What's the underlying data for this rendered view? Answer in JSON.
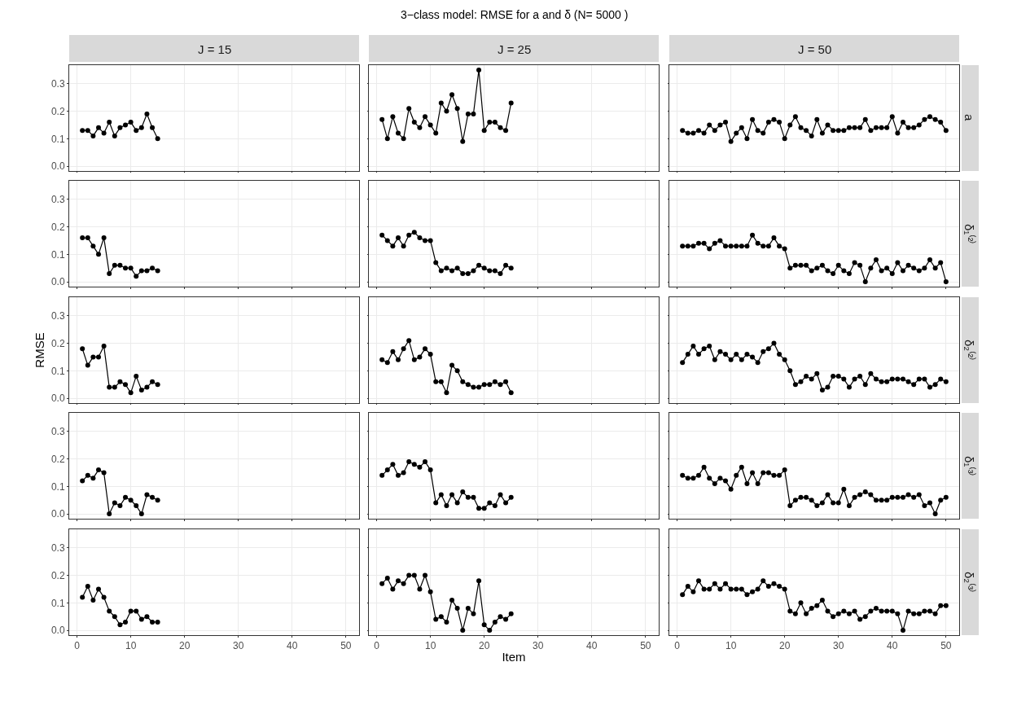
{
  "chart_data": [
    {
      "type": "line",
      "title": "J = 15",
      "annotations": [
        "3−class model: RMSE for a and δ (N= 5000 )"
      ],
      "x": [
        1,
        2,
        3,
        4,
        5,
        6,
        7,
        8,
        9,
        10,
        11,
        12,
        13,
        14,
        15
      ],
      "values": [
        0.13,
        0.13,
        0.11,
        0.14,
        0.12,
        0.16,
        0.11,
        0.14,
        0.15,
        0.16,
        0.13,
        0.14,
        0.19,
        0.14,
        0.1
      ],
      "color": "#000000",
      "marker": "circle",
      "xlim": [
        -1.45,
        52.45
      ],
      "ylim": [
        -0.0175,
        0.3675
      ],
      "xticks": [
        0,
        10,
        20,
        30,
        40,
        50
      ],
      "yticks": [
        {
          "value": 0,
          "label": "0.0"
        },
        {
          "value": 0.1,
          "label": "0.1"
        },
        {
          "value": 0.2,
          "label": "0.2"
        },
        {
          "value": 0.3,
          "label": "0.3"
        }
      ],
      "grid": true,
      "tick_labels": "y"
    },
    {
      "type": "line",
      "title": "J = 25",
      "x": [
        1,
        2,
        3,
        4,
        5,
        6,
        7,
        8,
        9,
        10,
        11,
        12,
        13,
        14,
        15,
        16,
        17,
        18,
        19,
        20,
        21,
        22,
        23,
        24,
        25
      ],
      "values": [
        0.17,
        0.1,
        0.18,
        0.12,
        0.1,
        0.21,
        0.16,
        0.14,
        0.18,
        0.15,
        0.12,
        0.23,
        0.2,
        0.26,
        0.21,
        0.09,
        0.19,
        0.19,
        0.35,
        0.13,
        0.16,
        0.16,
        0.14,
        0.13,
        0.23
      ],
      "color": "#000000",
      "marker": "circle",
      "xlim": [
        -1.45,
        52.45
      ],
      "ylim": [
        -0.0175,
        0.3675
      ],
      "xticks": [
        0,
        10,
        20,
        30,
        40,
        50
      ],
      "yticks": [
        0,
        0.1,
        0.2,
        0.3
      ],
      "grid": true,
      "tick_labels": false
    },
    {
      "type": "line",
      "title": "J = 50",
      "annotations": [
        "a"
      ],
      "x": [
        1,
        2,
        3,
        4,
        5,
        6,
        7,
        8,
        9,
        10,
        11,
        12,
        13,
        14,
        15,
        16,
        17,
        18,
        19,
        20,
        21,
        22,
        23,
        24,
        25,
        26,
        27,
        28,
        29,
        30,
        31,
        32,
        33,
        34,
        35,
        36,
        37,
        38,
        39,
        40,
        41,
        42,
        43,
        44,
        45,
        46,
        47,
        48,
        49,
        50
      ],
      "values": [
        0.13,
        0.12,
        0.12,
        0.13,
        0.12,
        0.15,
        0.13,
        0.15,
        0.16,
        0.09,
        0.12,
        0.14,
        0.1,
        0.17,
        0.13,
        0.12,
        0.16,
        0.17,
        0.16,
        0.1,
        0.15,
        0.18,
        0.14,
        0.13,
        0.11,
        0.17,
        0.12,
        0.15,
        0.13,
        0.13,
        0.13,
        0.14,
        0.14,
        0.14,
        0.17,
        0.13,
        0.14,
        0.14,
        0.14,
        0.18,
        0.12,
        0.16,
        0.14,
        0.14,
        0.15,
        0.17,
        0.18,
        0.17,
        0.16,
        0.13
      ],
      "color": "#000000",
      "marker": "circle",
      "xlim": [
        -1.45,
        52.45
      ],
      "ylim": [
        -0.0175,
        0.3675
      ],
      "xticks": [
        0,
        10,
        20,
        30,
        40,
        50
      ],
      "yticks": [
        0,
        0.1,
        0.2,
        0.3
      ],
      "grid": true,
      "tick_labels": false
    },
    {
      "type": "line",
      "x": [
        1,
        2,
        3,
        4,
        5,
        6,
        7,
        8,
        9,
        10,
        11,
        12,
        13,
        14,
        15
      ],
      "values": [
        0.16,
        0.16,
        0.13,
        0.1,
        0.16,
        0.03,
        0.06,
        0.06,
        0.05,
        0.05,
        0.02,
        0.04,
        0.04,
        0.05,
        0.04
      ],
      "color": "#000000",
      "marker": "circle",
      "xlim": [
        -1.45,
        52.45
      ],
      "ylim": [
        -0.0175,
        0.3675
      ],
      "xticks": [
        0,
        10,
        20,
        30,
        40,
        50
      ],
      "yticks": [
        {
          "value": 0,
          "label": "0.0"
        },
        {
          "value": 0.1,
          "label": "0.1"
        },
        {
          "value": 0.2,
          "label": "0.2"
        },
        {
          "value": 0.3,
          "label": "0.3"
        }
      ],
      "grid": true,
      "tick_labels": "y"
    },
    {
      "type": "line",
      "x": [
        1,
        2,
        3,
        4,
        5,
        6,
        7,
        8,
        9,
        10,
        11,
        12,
        13,
        14,
        15,
        16,
        17,
        18,
        19,
        20,
        21,
        22,
        23,
        24,
        25
      ],
      "values": [
        0.17,
        0.15,
        0.13,
        0.16,
        0.13,
        0.17,
        0.18,
        0.16,
        0.15,
        0.15,
        0.07,
        0.04,
        0.05,
        0.04,
        0.05,
        0.03,
        0.03,
        0.04,
        0.06,
        0.05,
        0.04,
        0.04,
        0.03,
        0.06,
        0.05
      ],
      "color": "#000000",
      "marker": "circle",
      "xlim": [
        -1.45,
        52.45
      ],
      "ylim": [
        -0.0175,
        0.3675
      ],
      "xticks": [
        0,
        10,
        20,
        30,
        40,
        50
      ],
      "yticks": [
        0,
        0.1,
        0.2,
        0.3
      ],
      "grid": true,
      "tick_labels": false
    },
    {
      "type": "line",
      "annotations": [
        "δ₁⁽²⁾"
      ],
      "x": [
        1,
        2,
        3,
        4,
        5,
        6,
        7,
        8,
        9,
        10,
        11,
        12,
        13,
        14,
        15,
        16,
        17,
        18,
        19,
        20,
        21,
        22,
        23,
        24,
        25,
        26,
        27,
        28,
        29,
        30,
        31,
        32,
        33,
        34,
        35,
        36,
        37,
        38,
        39,
        40,
        41,
        42,
        43,
        44,
        45,
        46,
        47,
        48,
        49,
        50
      ],
      "values": [
        0.13,
        0.13,
        0.13,
        0.14,
        0.14,
        0.12,
        0.14,
        0.15,
        0.13,
        0.13,
        0.13,
        0.13,
        0.13,
        0.17,
        0.14,
        0.13,
        0.13,
        0.16,
        0.13,
        0.12,
        0.05,
        0.06,
        0.06,
        0.06,
        0.04,
        0.05,
        0.06,
        0.04,
        0.03,
        0.06,
        0.04,
        0.03,
        0.07,
        0.06,
        0.0,
        0.05,
        0.08,
        0.04,
        0.05,
        0.03,
        0.07,
        0.04,
        0.06,
        0.05,
        0.04,
        0.05,
        0.08,
        0.05,
        0.07,
        0.0
      ],
      "color": "#000000",
      "marker": "circle",
      "xlim": [
        -1.45,
        52.45
      ],
      "ylim": [
        -0.0175,
        0.3675
      ],
      "xticks": [
        0,
        10,
        20,
        30,
        40,
        50
      ],
      "yticks": [
        0,
        0.1,
        0.2,
        0.3
      ],
      "grid": true,
      "tick_labels": false
    },
    {
      "type": "line",
      "ylabel": "RMSE",
      "x": [
        1,
        2,
        3,
        4,
        5,
        6,
        7,
        8,
        9,
        10,
        11,
        12,
        13,
        14,
        15
      ],
      "values": [
        0.18,
        0.12,
        0.15,
        0.15,
        0.19,
        0.04,
        0.04,
        0.06,
        0.05,
        0.02,
        0.08,
        0.03,
        0.04,
        0.06,
        0.05
      ],
      "color": "#000000",
      "marker": "circle",
      "xlim": [
        -1.45,
        52.45
      ],
      "ylim": [
        -0.0175,
        0.3675
      ],
      "xticks": [
        0,
        10,
        20,
        30,
        40,
        50
      ],
      "yticks": [
        {
          "value": 0,
          "label": "0.0"
        },
        {
          "value": 0.1,
          "label": "0.1"
        },
        {
          "value": 0.2,
          "label": "0.2"
        },
        {
          "value": 0.3,
          "label": "0.3"
        }
      ],
      "grid": true,
      "tick_labels": "y"
    },
    {
      "type": "line",
      "x": [
        1,
        2,
        3,
        4,
        5,
        6,
        7,
        8,
        9,
        10,
        11,
        12,
        13,
        14,
        15,
        16,
        17,
        18,
        19,
        20,
        21,
        22,
        23,
        24,
        25
      ],
      "values": [
        0.14,
        0.13,
        0.17,
        0.14,
        0.18,
        0.21,
        0.14,
        0.15,
        0.18,
        0.16,
        0.06,
        0.06,
        0.02,
        0.12,
        0.1,
        0.06,
        0.05,
        0.04,
        0.04,
        0.05,
        0.05,
        0.06,
        0.05,
        0.06,
        0.02
      ],
      "color": "#000000",
      "marker": "circle",
      "xlim": [
        -1.45,
        52.45
      ],
      "ylim": [
        -0.0175,
        0.3675
      ],
      "xticks": [
        0,
        10,
        20,
        30,
        40,
        50
      ],
      "yticks": [
        0,
        0.1,
        0.2,
        0.3
      ],
      "grid": true,
      "tick_labels": false
    },
    {
      "type": "line",
      "annotations": [
        "δ₂⁽²⁾"
      ],
      "x": [
        1,
        2,
        3,
        4,
        5,
        6,
        7,
        8,
        9,
        10,
        11,
        12,
        13,
        14,
        15,
        16,
        17,
        18,
        19,
        20,
        21,
        22,
        23,
        24,
        25,
        26,
        27,
        28,
        29,
        30,
        31,
        32,
        33,
        34,
        35,
        36,
        37,
        38,
        39,
        40,
        41,
        42,
        43,
        44,
        45,
        46,
        47,
        48,
        49,
        50
      ],
      "values": [
        0.13,
        0.16,
        0.19,
        0.16,
        0.18,
        0.19,
        0.14,
        0.17,
        0.16,
        0.14,
        0.16,
        0.14,
        0.16,
        0.15,
        0.13,
        0.17,
        0.18,
        0.2,
        0.16,
        0.14,
        0.1,
        0.05,
        0.06,
        0.08,
        0.07,
        0.09,
        0.03,
        0.04,
        0.08,
        0.08,
        0.07,
        0.04,
        0.07,
        0.08,
        0.05,
        0.09,
        0.07,
        0.06,
        0.06,
        0.07,
        0.07,
        0.07,
        0.06,
        0.05,
        0.07,
        0.07,
        0.04,
        0.05,
        0.07,
        0.06
      ],
      "color": "#000000",
      "marker": "circle",
      "xlim": [
        -1.45,
        52.45
      ],
      "ylim": [
        -0.0175,
        0.3675
      ],
      "xticks": [
        0,
        10,
        20,
        30,
        40,
        50
      ],
      "yticks": [
        0,
        0.1,
        0.2,
        0.3
      ],
      "grid": true,
      "tick_labels": false
    },
    {
      "type": "line",
      "x": [
        1,
        2,
        3,
        4,
        5,
        6,
        7,
        8,
        9,
        10,
        11,
        12,
        13,
        14,
        15
      ],
      "values": [
        0.12,
        0.14,
        0.13,
        0.16,
        0.15,
        0.0,
        0.04,
        0.03,
        0.06,
        0.05,
        0.03,
        0.0,
        0.07,
        0.06,
        0.05
      ],
      "color": "#000000",
      "marker": "circle",
      "xlim": [
        -1.45,
        52.45
      ],
      "ylim": [
        -0.0175,
        0.3675
      ],
      "xticks": [
        0,
        10,
        20,
        30,
        40,
        50
      ],
      "yticks": [
        {
          "value": 0,
          "label": "0.0"
        },
        {
          "value": 0.1,
          "label": "0.1"
        },
        {
          "value": 0.2,
          "label": "0.2"
        },
        {
          "value": 0.3,
          "label": "0.3"
        }
      ],
      "grid": true,
      "tick_labels": "y"
    },
    {
      "type": "line",
      "x": [
        1,
        2,
        3,
        4,
        5,
        6,
        7,
        8,
        9,
        10,
        11,
        12,
        13,
        14,
        15,
        16,
        17,
        18,
        19,
        20,
        21,
        22,
        23,
        24,
        25
      ],
      "values": [
        0.14,
        0.16,
        0.18,
        0.14,
        0.15,
        0.19,
        0.18,
        0.17,
        0.19,
        0.16,
        0.04,
        0.07,
        0.03,
        0.07,
        0.04,
        0.08,
        0.06,
        0.06,
        0.02,
        0.02,
        0.04,
        0.03,
        0.07,
        0.04,
        0.06
      ],
      "color": "#000000",
      "marker": "circle",
      "xlim": [
        -1.45,
        52.45
      ],
      "ylim": [
        -0.0175,
        0.3675
      ],
      "xticks": [
        0,
        10,
        20,
        30,
        40,
        50
      ],
      "yticks": [
        0,
        0.1,
        0.2,
        0.3
      ],
      "grid": true,
      "tick_labels": false
    },
    {
      "type": "line",
      "annotations": [
        "δ₁⁽³⁾"
      ],
      "x": [
        1,
        2,
        3,
        4,
        5,
        6,
        7,
        8,
        9,
        10,
        11,
        12,
        13,
        14,
        15,
        16,
        17,
        18,
        19,
        20,
        21,
        22,
        23,
        24,
        25,
        26,
        27,
        28,
        29,
        30,
        31,
        32,
        33,
        34,
        35,
        36,
        37,
        38,
        39,
        40,
        41,
        42,
        43,
        44,
        45,
        46,
        47,
        48,
        49,
        50
      ],
      "values": [
        0.14,
        0.13,
        0.13,
        0.14,
        0.17,
        0.13,
        0.11,
        0.13,
        0.12,
        0.09,
        0.14,
        0.17,
        0.11,
        0.15,
        0.11,
        0.15,
        0.15,
        0.14,
        0.14,
        0.16,
        0.03,
        0.05,
        0.06,
        0.06,
        0.05,
        0.03,
        0.04,
        0.07,
        0.04,
        0.04,
        0.09,
        0.03,
        0.06,
        0.07,
        0.08,
        0.07,
        0.05,
        0.05,
        0.05,
        0.06,
        0.06,
        0.06,
        0.07,
        0.06,
        0.07,
        0.03,
        0.04,
        0.0,
        0.05,
        0.06
      ],
      "color": "#000000",
      "marker": "circle",
      "xlim": [
        -1.45,
        52.45
      ],
      "ylim": [
        -0.0175,
        0.3675
      ],
      "xticks": [
        0,
        10,
        20,
        30,
        40,
        50
      ],
      "yticks": [
        0,
        0.1,
        0.2,
        0.3
      ],
      "grid": true,
      "tick_labels": false
    },
    {
      "type": "line",
      "x": [
        1,
        2,
        3,
        4,
        5,
        6,
        7,
        8,
        9,
        10,
        11,
        12,
        13,
        14,
        15
      ],
      "values": [
        0.12,
        0.16,
        0.11,
        0.15,
        0.12,
        0.07,
        0.05,
        0.02,
        0.03,
        0.07,
        0.07,
        0.04,
        0.05,
        0.03,
        0.03
      ],
      "color": "#000000",
      "marker": "circle",
      "xlim": [
        -1.45,
        52.45
      ],
      "ylim": [
        -0.0175,
        0.3675
      ],
      "xticks": [
        0,
        10,
        20,
        30,
        40,
        50
      ],
      "yticks": [
        {
          "value": 0,
          "label": "0.0"
        },
        {
          "value": 0.1,
          "label": "0.1"
        },
        {
          "value": 0.2,
          "label": "0.2"
        },
        {
          "value": 0.3,
          "label": "0.3"
        }
      ],
      "grid": true
    },
    {
      "type": "line",
      "xlabel": "Item",
      "x": [
        1,
        2,
        3,
        4,
        5,
        6,
        7,
        8,
        9,
        10,
        11,
        12,
        13,
        14,
        15,
        16,
        17,
        18,
        19,
        20,
        21,
        22,
        23,
        24,
        25
      ],
      "values": [
        0.17,
        0.19,
        0.15,
        0.18,
        0.17,
        0.2,
        0.2,
        0.15,
        0.2,
        0.14,
        0.04,
        0.05,
        0.03,
        0.11,
        0.08,
        0.0,
        0.08,
        0.06,
        0.18,
        0.02,
        0.0,
        0.03,
        0.05,
        0.04,
        0.06
      ],
      "color": "#000000",
      "marker": "circle",
      "xlim": [
        -1.45,
        52.45
      ],
      "ylim": [
        -0.0175,
        0.3675
      ],
      "xticks": [
        0,
        10,
        20,
        30,
        40,
        50
      ],
      "yticks": [
        0,
        0.1,
        0.2,
        0.3
      ],
      "grid": true,
      "tick_labels": "x"
    },
    {
      "type": "line",
      "annotations": [
        "δ₂⁽³⁾"
      ],
      "x": [
        1,
        2,
        3,
        4,
        5,
        6,
        7,
        8,
        9,
        10,
        11,
        12,
        13,
        14,
        15,
        16,
        17,
        18,
        19,
        20,
        21,
        22,
        23,
        24,
        25,
        26,
        27,
        28,
        29,
        30,
        31,
        32,
        33,
        34,
        35,
        36,
        37,
        38,
        39,
        40,
        41,
        42,
        43,
        44,
        45,
        46,
        47,
        48,
        49,
        50
      ],
      "values": [
        0.13,
        0.16,
        0.14,
        0.18,
        0.15,
        0.15,
        0.17,
        0.15,
        0.17,
        0.15,
        0.15,
        0.15,
        0.13,
        0.14,
        0.15,
        0.18,
        0.16,
        0.17,
        0.16,
        0.15,
        0.07,
        0.06,
        0.1,
        0.06,
        0.08,
        0.09,
        0.11,
        0.07,
        0.05,
        0.06,
        0.07,
        0.06,
        0.07,
        0.04,
        0.05,
        0.07,
        0.08,
        0.07,
        0.07,
        0.07,
        0.06,
        0.0,
        0.07,
        0.06,
        0.06,
        0.07,
        0.07,
        0.06,
        0.09,
        0.09
      ],
      "color": "#000000",
      "marker": "circle",
      "xlim": [
        -1.45,
        52.45
      ],
      "ylim": [
        -0.0175,
        0.3675
      ],
      "xticks": [
        0,
        10,
        20,
        30,
        40,
        50
      ],
      "yticks": [
        0,
        0.1,
        0.2,
        0.3
      ],
      "grid": true,
      "tick_labels": "x"
    }
  ]
}
